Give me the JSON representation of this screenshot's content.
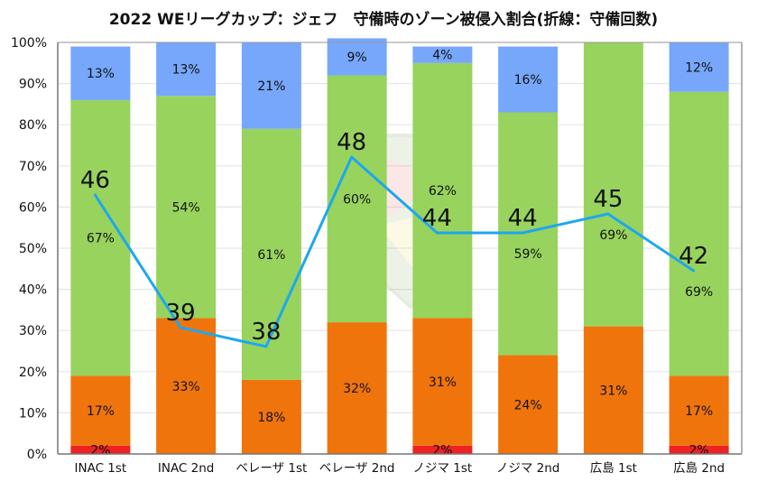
{
  "chart_data": {
    "type": "bar",
    "stacked": true,
    "title": "2022 WEリーグカップ：ジェフ　守備時のゾーン被侵入割合(折線：守備回数)",
    "xlabel": "",
    "ylabel": "",
    "ylim": [
      0,
      100
    ],
    "yticks": [
      "0%",
      "10%",
      "20%",
      "30%",
      "40%",
      "50%",
      "60%",
      "70%",
      "80%",
      "90%",
      "100%"
    ],
    "grid": true,
    "legend": "none",
    "categories": [
      "INAC 1st",
      "INAC 2nd",
      "ベレーザ 1st",
      "ベレーザ 2nd",
      "ノジマ 1st",
      "ノジマ 2nd",
      "広島 1st",
      "広島 2nd"
    ],
    "series": [
      {
        "name": "red",
        "color": "#ee2222",
        "values": [
          2,
          0,
          0,
          0,
          2,
          0,
          0,
          2
        ],
        "labels": [
          "2%",
          "",
          "",
          "",
          "2%",
          "",
          "",
          "2%"
        ]
      },
      {
        "name": "orange",
        "color": "#f0740c",
        "values": [
          17,
          33,
          18,
          32,
          31,
          24,
          31,
          17
        ],
        "labels": [
          "17%",
          "33%",
          "18%",
          "32%",
          "31%",
          "24%",
          "31%",
          "17%"
        ]
      },
      {
        "name": "green",
        "color": "#98d35e",
        "values": [
          67,
          54,
          61,
          60,
          62,
          59,
          69,
          69
        ],
        "labels": [
          "67%",
          "54%",
          "61%",
          "60%",
          "62%",
          "59%",
          "69%",
          "69%"
        ]
      },
      {
        "name": "blue",
        "color": "#76a7fb",
        "values": [
          13,
          13,
          21,
          9,
          4,
          16,
          0,
          12
        ],
        "labels": [
          "13%",
          "13%",
          "21%",
          "9%",
          "4%",
          "16%",
          "",
          "12%"
        ]
      }
    ],
    "line_series": {
      "name": "守備回数",
      "color": "#1ea7ee",
      "values": [
        46,
        39,
        38,
        48,
        44,
        44,
        45,
        42
      ],
      "labels": [
        "46",
        "39",
        "38",
        "48",
        "44",
        "44",
        "45",
        "42"
      ],
      "secondary_axis_range": [
        32.33,
        54.05
      ],
      "secondary_axis_visible": false
    }
  }
}
